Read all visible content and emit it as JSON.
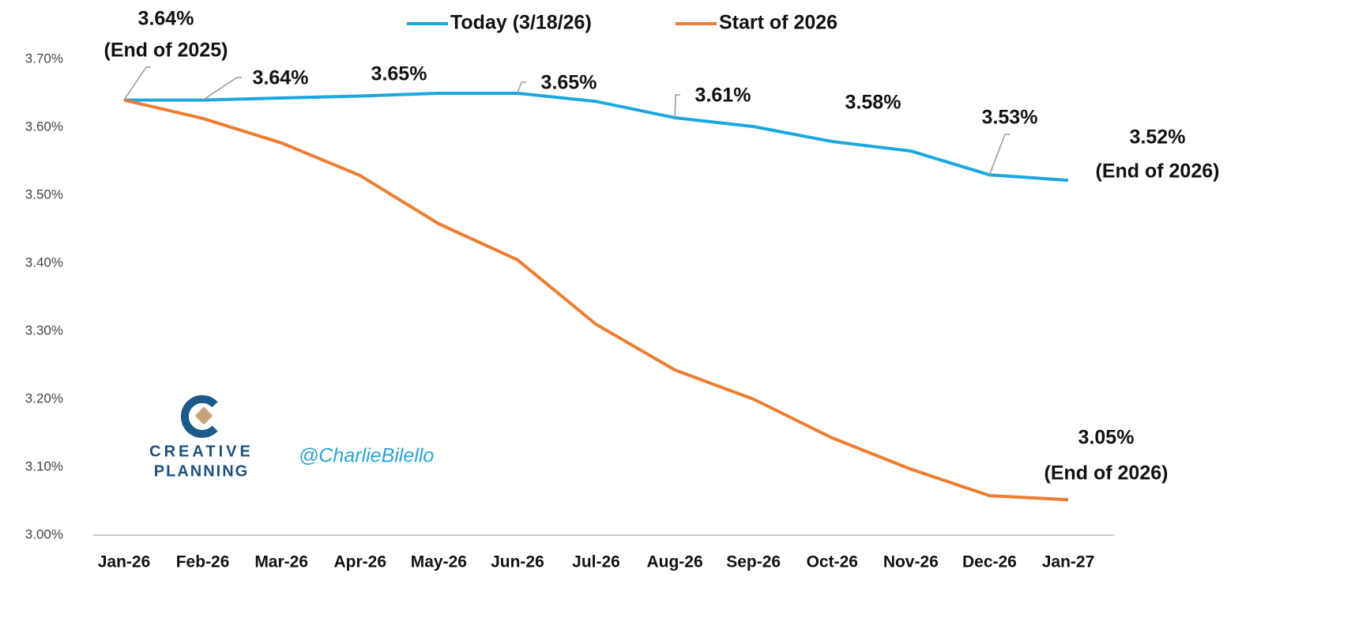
{
  "chart_data": {
    "type": "line",
    "categories": [
      "Jan-26",
      "Feb-26",
      "Mar-26",
      "Apr-26",
      "May-26",
      "Jun-26",
      "Jul-26",
      "Aug-26",
      "Sep-26",
      "Oct-26",
      "Nov-26",
      "Dec-26",
      "Jan-27"
    ],
    "series": [
      {
        "name": "Today (3/18/26)",
        "color": "#1aa7e0",
        "values": [
          3.64,
          3.64,
          3.643,
          3.646,
          3.65,
          3.65,
          3.638,
          3.614,
          3.601,
          3.579,
          3.565,
          3.53,
          3.522
        ],
        "value_labels": [
          "3.64%",
          "3.64%",
          null,
          null,
          "3.65%",
          "3.65%",
          null,
          "3.61%",
          null,
          "3.58%",
          null,
          "3.53%",
          "3.52%"
        ]
      },
      {
        "name": "Start of 2026",
        "color": "#ed7d31",
        "values": [
          3.64,
          3.613,
          3.577,
          3.529,
          3.458,
          3.405,
          3.31,
          3.243,
          3.2,
          3.143,
          3.097,
          3.058,
          3.052
        ],
        "value_labels": [
          null,
          null,
          null,
          null,
          null,
          null,
          null,
          null,
          null,
          null,
          null,
          null,
          "3.05%"
        ]
      }
    ],
    "annotations": [
      "(End of 2025)",
      "(End of 2026)",
      "(End of 2026)"
    ],
    "ylim": [
      3.0,
      3.7
    ],
    "yticks": [
      {
        "value": 3.0,
        "label": "3.00%"
      },
      {
        "value": 3.1,
        "label": "3.10%"
      },
      {
        "value": 3.2,
        "label": "3.20%"
      },
      {
        "value": 3.3,
        "label": "3.30%"
      },
      {
        "value": 3.4,
        "label": "3.40%"
      },
      {
        "value": 3.5,
        "label": "3.50%"
      },
      {
        "value": 3.6,
        "label": "3.60%"
      },
      {
        "value": 3.7,
        "label": "3.70%"
      }
    ],
    "grid": false,
    "legend": "top",
    "watermark": {
      "brand_lines": [
        "CREATIVE",
        "PLANNING"
      ],
      "handle": "@CharlieBilello"
    }
  }
}
